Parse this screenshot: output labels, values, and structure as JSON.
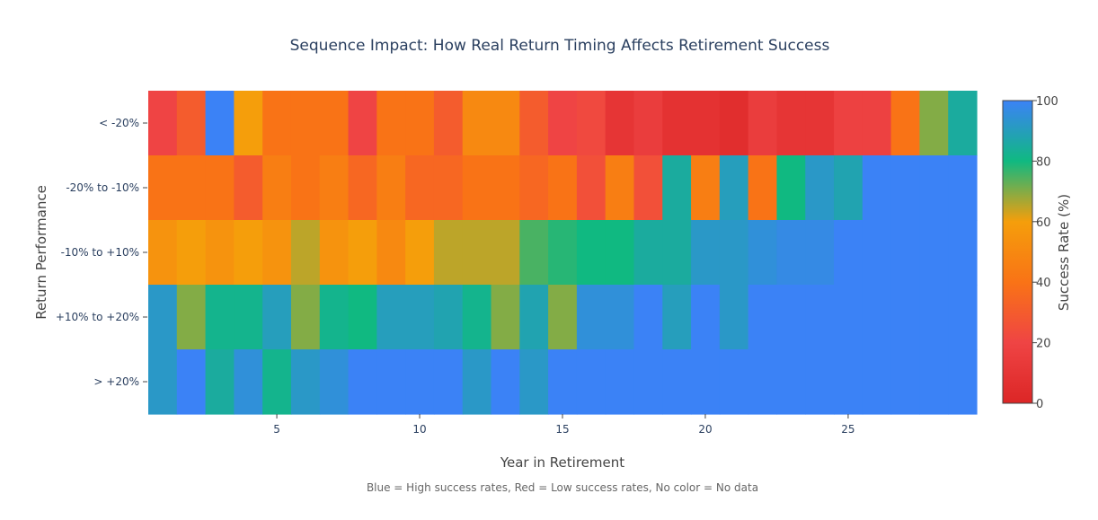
{
  "chart_data": {
    "type": "heatmap",
    "title": "Sequence Impact: How Real Return Timing Affects Retirement Success",
    "xlabel": "Year in Retirement",
    "ylabel": "Return Performance",
    "caption": "Blue = High success rates, Red = Low success rates, No color = No data",
    "x": [
      1,
      2,
      3,
      4,
      5,
      6,
      7,
      8,
      9,
      10,
      11,
      12,
      13,
      14,
      15,
      16,
      17,
      18,
      19,
      20,
      21,
      22,
      23,
      24,
      25,
      26,
      27,
      28,
      29
    ],
    "x_ticks": [
      "5",
      "10",
      "15",
      "20",
      "25"
    ],
    "x_tick_values": [
      5,
      10,
      15,
      20,
      25
    ],
    "xlim": [
      0.5,
      29.5
    ],
    "categories": [
      "< -20%",
      "-20% to -10%",
      "-10% to +10%",
      "+10% to +20%",
      "> +20%"
    ],
    "z": [
      [
        20,
        30,
        100,
        60,
        40,
        40,
        40,
        20,
        40,
        40,
        30,
        50,
        50,
        30,
        20,
        22,
        10,
        15,
        8,
        8,
        5,
        15,
        10,
        10,
        18,
        18,
        40,
        70,
        85
      ],
      [
        40,
        40,
        40,
        30,
        45,
        40,
        45,
        35,
        45,
        35,
        35,
        40,
        40,
        35,
        40,
        25,
        45,
        25,
        85,
        45,
        90,
        40,
        80,
        92,
        88,
        100,
        100,
        100,
        100
      ],
      [
        55,
        60,
        55,
        60,
        55,
        65,
        55,
        60,
        50,
        60,
        65,
        65,
        65,
        75,
        78,
        80,
        80,
        85,
        85,
        92,
        92,
        95,
        97,
        97,
        100,
        100,
        100,
        100,
        100
      ],
      [
        92,
        70,
        82,
        82,
        90,
        70,
        82,
        80,
        90,
        90,
        88,
        82,
        70,
        88,
        70,
        95,
        95,
        100,
        90,
        100,
        92,
        100,
        100,
        100,
        100,
        100,
        100,
        100,
        100
      ],
      [
        92,
        100,
        85,
        95,
        82,
        92,
        95,
        100,
        100,
        100,
        100,
        92,
        100,
        92,
        100,
        100,
        100,
        100,
        100,
        100,
        100,
        100,
        100,
        100,
        100,
        100,
        100,
        100,
        100
      ]
    ],
    "colorbar": {
      "title": "Success Rate (%)",
      "ticks": [
        "0",
        "20",
        "40",
        "60",
        "80",
        "100"
      ],
      "tick_values": [
        0,
        20,
        40,
        60,
        80,
        100
      ],
      "range": [
        0,
        100
      ]
    },
    "colorscale": [
      [
        0,
        "#dc2626"
      ],
      [
        0.2,
        "#ef4444"
      ],
      [
        0.4,
        "#f97316"
      ],
      [
        0.6,
        "#f59e0b"
      ],
      [
        0.8,
        "#10b981"
      ],
      [
        1,
        "#3b82f6"
      ]
    ]
  }
}
